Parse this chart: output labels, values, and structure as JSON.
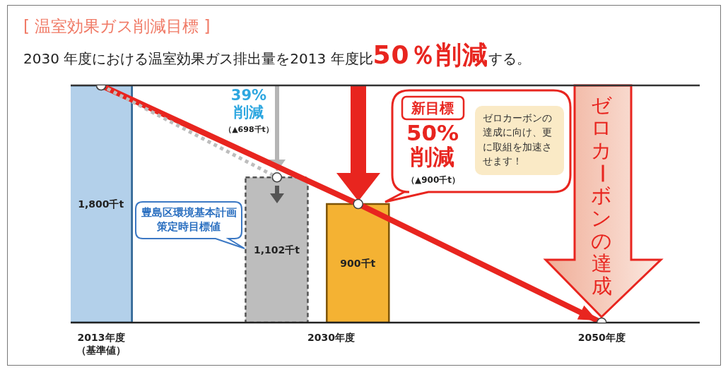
{
  "chart_data": {
    "type": "bar",
    "title": "[ 温室効果ガス削減目標 ]",
    "subtitle": "2030 年度における温室効果ガス排出量を2013 年度比50％削減する。",
    "annotations": [
      "39%\n削減",
      "（▲698千t）",
      "新目標",
      "50%\n削減",
      "（▲900千t）",
      "ゼロカーボンの達成に向け、更に取組を加速させます！",
      "ゼロカーボンの達成",
      "豊島区環境基本計画策定時目標値"
    ],
    "xlim": [
      2010.75,
      2057.25
    ],
    "xticks": [
      {
        "value": 2013,
        "label": "2013年度（基準値）"
      },
      {
        "value": 2030,
        "label": "2030年度"
      },
      {
        "value": 2050,
        "label": "2050年度"
      }
    ],
    "ylim": [
      0,
      1800
    ],
    "tick_labels": "x",
    "ref_lines": [
      {
        "axis": "y",
        "value": 1800,
        "color": "#333333"
      }
    ],
    "series": [
      {
        "x": [
          2013
        ],
        "values": [
          1800
        ],
        "color": "#b3d0ea",
        "value_labels": [
          "1,800千t"
        ]
      },
      {
        "x": [
          2026
        ],
        "values": [
          1102
        ],
        "color": "#bdbdbd",
        "line_style": "dashed",
        "value_labels": [
          "1,102千t"
        ]
      },
      {
        "x": [
          2032
        ],
        "values": [
          900
        ],
        "color": "#f4b233",
        "value_labels": [
          "900千t"
        ]
      },
      {
        "type": "line",
        "x": [
          2013,
          2032,
          2050
        ],
        "values": [
          1800,
          900,
          0
        ],
        "color": "#e8251f",
        "marker": "circle"
      },
      {
        "type": "line",
        "x": [
          2013,
          2026
        ],
        "values": [
          1800,
          1102
        ],
        "color": "#bdbdbd",
        "line_style": "dotted",
        "marker": "circle"
      }
    ]
  }
}
